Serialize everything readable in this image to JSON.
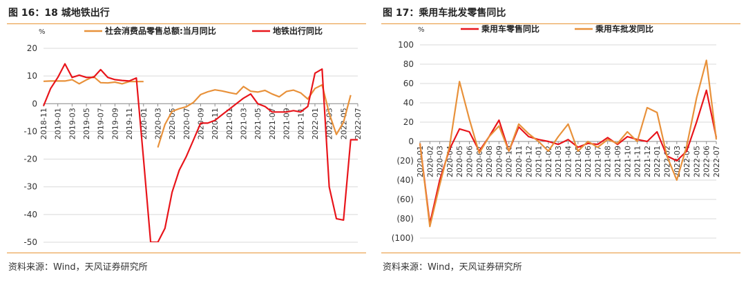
{
  "colors": {
    "accent": "#e89433",
    "orange": "#e8913a",
    "red": "#e8141a"
  },
  "charts": [
    {
      "fig_label": "图 16：18 城地铁出行",
      "source": "资料来源：Wind，天风证券研究所",
      "chart_data": {
        "type": "line",
        "y_unit": "%",
        "ylim": [
          -50,
          20
        ],
        "yticks": [
          20,
          10,
          0,
          -10,
          -20,
          -30,
          -40,
          -50
        ],
        "x_tick_labels": [
          "2018-11",
          "2019-01",
          "2019-03",
          "2019-05",
          "2019-07",
          "2019-09",
          "2019-11",
          "2020-01",
          "2020-03",
          "2020-05",
          "2020-07",
          "2020-09",
          "2020-11",
          "2021-01",
          "2021-03",
          "2021-05",
          "2021-07",
          "2021-09",
          "2021-11",
          "2022-01",
          "2022-03",
          "2022-05",
          "2022-07"
        ],
        "x": [
          "2018-11",
          "2018-12",
          "2019-01",
          "2019-02",
          "2019-03",
          "2019-04",
          "2019-05",
          "2019-06",
          "2019-07",
          "2019-08",
          "2019-09",
          "2019-10",
          "2019-11",
          "2019-12",
          "2020-01",
          "2020-02",
          "2020-03",
          "2020-04",
          "2020-05",
          "2020-06",
          "2020-07",
          "2020-08",
          "2020-09",
          "2020-10",
          "2020-11",
          "2020-12",
          "2021-01",
          "2021-02",
          "2021-03",
          "2021-04",
          "2021-05",
          "2021-06",
          "2021-07",
          "2021-08",
          "2021-09",
          "2021-10",
          "2021-11",
          "2021-12",
          "2022-01",
          "2022-02",
          "2022-03",
          "2022-04",
          "2022-05",
          "2022-06",
          "2022-07"
        ],
        "legend_position": "top",
        "series": [
          {
            "name": "社会消费品零售总额:当月同比",
            "color": "#e8913a",
            "values": [
              8.1,
              8.2,
              8.2,
              8.2,
              8.7,
              7.2,
              8.6,
              9.8,
              7.6,
              7.5,
              7.8,
              7.2,
              8.0,
              8.0,
              8.0,
              null,
              -15.8,
              -7.5,
              -2.8,
              -1.8,
              -1.1,
              0.5,
              3.3,
              4.3,
              5.0,
              4.6,
              4.0,
              3.5,
              6.2,
              4.5,
              4.2,
              4.8,
              3.5,
              2.5,
              4.4,
              4.9,
              3.9,
              1.7,
              5.5,
              6.8,
              -3.5,
              -11.1,
              -6.7,
              3.1,
              null
            ]
          },
          {
            "name": "地铁出行同比",
            "color": "#e8141a",
            "values": [
              -0.8,
              5.5,
              9.5,
              14.4,
              9.5,
              10.3,
              9.5,
              9.5,
              12.3,
              9.5,
              8.7,
              8.4,
              8.2,
              9.3,
              -20,
              -50,
              -50,
              -45,
              -32,
              -24,
              -19,
              -13,
              -7,
              -7,
              -6,
              -4,
              -2,
              0,
              2,
              3.5,
              0,
              -1,
              -3,
              -3,
              -3,
              -2.5,
              -3,
              -1,
              11,
              12.5,
              -30,
              -41.5,
              -42,
              -13,
              -13
            ]
          }
        ]
      }
    },
    {
      "fig_label": "图 17：乘用车批发零售同比",
      "source": "资料来源：Wind，天风证券研究所",
      "chart_data": {
        "type": "line",
        "y_unit": "%",
        "ylim": [
          -100,
          100
        ],
        "yticks": [
          "100",
          "80",
          "60",
          "40",
          "20",
          "0",
          "(20)",
          "(40)",
          "(60)",
          "(80)",
          "(100)"
        ],
        "x_tick_labels": [
          "2020-01",
          "2020-02",
          "2020-03",
          "2020-04",
          "2020-05",
          "2020-06",
          "2020-07",
          "2020-08",
          "2020-09",
          "2020-10",
          "2020-11",
          "2020-12",
          "2021-01",
          "2021-02",
          "2021-03",
          "2021-04",
          "2021-05",
          "2021-06",
          "2021-07",
          "2021-08",
          "2021-09",
          "2021-10",
          "2021-11",
          "2021-12",
          "2022-01",
          "2022-02",
          "2022-03",
          "2022-04",
          "2022-05",
          "2022-06",
          "2022-07"
        ],
        "x": [
          "2020-01",
          "2020-02",
          "2020-03",
          "2020-04",
          "2020-05",
          "2020-06",
          "2020-07",
          "2020-08",
          "2020-09",
          "2020-10",
          "2020-11",
          "2020-12",
          "2021-01",
          "2021-02",
          "2021-03",
          "2021-04",
          "2021-05",
          "2021-06",
          "2021-07",
          "2021-08",
          "2021-09",
          "2021-10",
          "2021-11",
          "2021-12",
          "2022-01",
          "2022-02",
          "2022-03",
          "2022-04",
          "2022-05",
          "2022-06",
          "2022-07"
        ],
        "legend_position": "top",
        "series": [
          {
            "name": "乘用车零售同比",
            "color": "#e8141a",
            "values": [
              -2,
              -85,
              -40,
              -8,
              13,
              10,
              -10,
              5,
              22,
              -10,
              15,
              5,
              2,
              0,
              -3,
              2,
              -6,
              -2,
              -3,
              4,
              -3,
              5,
              2,
              0,
              10,
              -15,
              -20,
              -10,
              20,
              53,
              4
            ]
          },
          {
            "name": "乘用车批发同比",
            "color": "#e8913a",
            "values": [
              -2,
              -88,
              -45,
              -5,
              62,
              23,
              -12,
              5,
              16,
              -10,
              18,
              8,
              0,
              -10,
              5,
              18,
              -10,
              0,
              -6,
              2,
              -2,
              10,
              0,
              35,
              30,
              -15,
              -40,
              -5,
              45,
              84,
              2
            ]
          }
        ]
      }
    }
  ]
}
